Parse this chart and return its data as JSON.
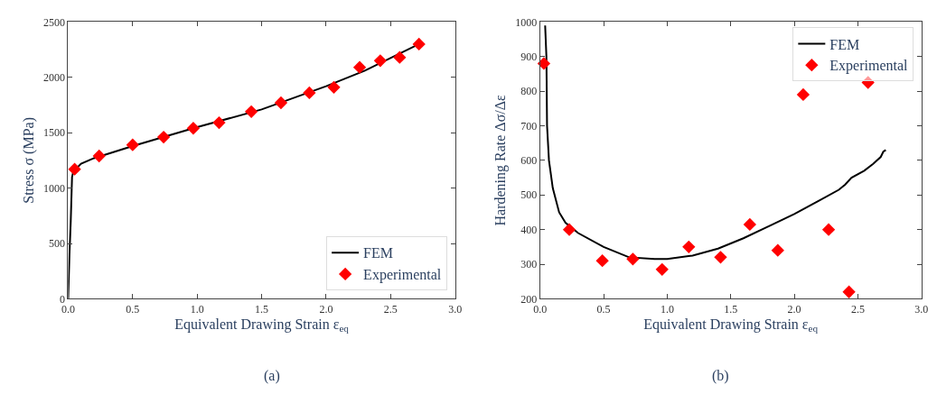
{
  "chart_data": [
    {
      "type": "line",
      "xlabel": "Equivalent Drawing Strain ε$_{eq}$",
      "ylabel": "Stress σ (MPa)",
      "xlim": [
        0,
        3
      ],
      "ylim": [
        0,
        2500
      ],
      "xticks": [
        {
          "value": 0,
          "label": "0.0"
        },
        0.5,
        {
          "value": 1,
          "label": "1.0"
        },
        1.5,
        {
          "value": 2,
          "label": "2.0"
        },
        2.5,
        {
          "value": 3,
          "label": "3.0"
        }
      ],
      "yticks": [
        0,
        500,
        1000,
        1500,
        2000,
        2500
      ],
      "legend": "bottom right",
      "annotations": [
        "(a)"
      ],
      "series": [
        {
          "name": "FEM",
          "color": "#000000",
          "marker": "none",
          "line_style": "solid",
          "x": [
            0,
            0.01,
            0.02,
            0.03,
            0.04,
            0.1,
            0.2,
            0.5,
            1.0,
            1.5,
            2.0,
            2.3,
            2.72
          ],
          "values": [
            0,
            400,
            700,
            1100,
            1150,
            1220,
            1270,
            1380,
            1550,
            1710,
            1920,
            2060,
            2300
          ]
        },
        {
          "name": "Experimental",
          "type": "scatter",
          "color": "#ff0000",
          "marker": "diamond",
          "x": [
            0.05,
            0.24,
            0.5,
            0.74,
            0.97,
            1.17,
            1.42,
            1.65,
            1.87,
            2.06,
            2.26,
            2.42,
            2.57,
            2.72
          ],
          "values": [
            1170,
            1290,
            1390,
            1460,
            1540,
            1590,
            1690,
            1770,
            1860,
            1910,
            2090,
            2150,
            2180,
            2300
          ]
        }
      ]
    },
    {
      "type": "line",
      "xlabel": "Equivalent Drawing Strain ε$_{eq}$",
      "ylabel": "Hardening Rate Δσ/Δε",
      "xlim": [
        0,
        3
      ],
      "ylim": [
        200,
        1000
      ],
      "xticks": [
        {
          "value": 0,
          "label": "0.0"
        },
        0.5,
        {
          "value": 1,
          "label": "1.0"
        },
        1.5,
        {
          "value": 2,
          "label": "2.0"
        },
        2.5,
        {
          "value": 3,
          "label": "3.0"
        }
      ],
      "yticks": [
        200,
        300,
        400,
        500,
        600,
        700,
        800,
        900,
        1000
      ],
      "legend": "top right",
      "annotations": [
        "(b)"
      ],
      "series": [
        {
          "name": "FEM",
          "color": "#000000",
          "marker": "none",
          "line_style": "solid",
          "x": [
            0.04,
            0.05,
            0.055,
            0.07,
            0.1,
            0.15,
            0.2,
            0.3,
            0.5,
            0.7,
            0.9,
            1.0,
            1.2,
            1.4,
            1.6,
            1.8,
            2.0,
            2.2,
            2.35,
            2.4,
            2.45,
            2.55,
            2.62,
            2.68,
            2.7,
            2.72
          ],
          "values": [
            990,
            900,
            700,
            600,
            520,
            450,
            420,
            390,
            350,
            320,
            315,
            315,
            325,
            345,
            375,
            410,
            445,
            485,
            515,
            530,
            550,
            570,
            590,
            610,
            625,
            630
          ]
        },
        {
          "name": "Experimental",
          "type": "scatter",
          "color": "#ff0000",
          "marker": "diamond",
          "x": [
            0.03,
            0.23,
            0.49,
            0.73,
            0.96,
            1.17,
            1.42,
            1.65,
            1.87,
            2.07,
            2.27,
            2.43,
            2.58
          ],
          "values": [
            880,
            400,
            310,
            315,
            285,
            350,
            320,
            415,
            340,
            790,
            400,
            220,
            825
          ]
        }
      ]
    }
  ]
}
